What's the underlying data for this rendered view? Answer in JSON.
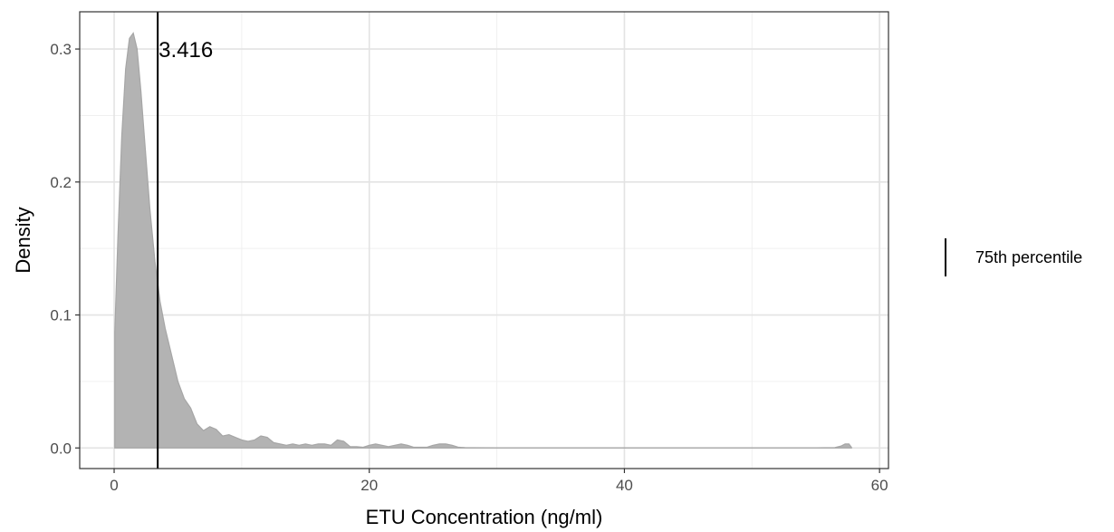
{
  "chart_data": {
    "type": "area",
    "xlabel": "ETU Concentration (ng/ml)",
    "ylabel": "Density",
    "xlim": [
      -2.7,
      60.7
    ],
    "ylim": [
      -0.0155,
      0.328
    ],
    "x_ticks": [
      0,
      20,
      40,
      60
    ],
    "y_ticks": [
      0.0,
      0.1,
      0.2,
      0.3
    ],
    "x_tick_labels": [
      "0",
      "20",
      "40",
      "60"
    ],
    "y_tick_labels": [
      "0.0",
      "0.1",
      "0.2",
      "0.3"
    ],
    "x_minor_ticks": [
      10,
      30,
      50
    ],
    "y_minor_ticks": [
      0.05,
      0.15,
      0.25
    ],
    "grid": true,
    "series": [
      {
        "fill_color": "#b3b3b3",
        "line_color": "#a6a6a6",
        "x": [
          0.05,
          0.3,
          0.6,
          0.9,
          1.2,
          1.5,
          1.8,
          2.1,
          2.4,
          2.8,
          3.2,
          3.6,
          4.0,
          4.5,
          5.0,
          5.5,
          6.0,
          6.5,
          7.0,
          7.5,
          8.0,
          8.5,
          9.0,
          9.5,
          10.0,
          10.5,
          11.0,
          11.5,
          12.0,
          12.5,
          13.0,
          13.5,
          14.0,
          14.5,
          15.0,
          15.5,
          16.0,
          16.5,
          17.0,
          17.5,
          18.0,
          18.5,
          19.0,
          19.5,
          20.0,
          20.5,
          21.0,
          21.5,
          22.0,
          22.5,
          23.0,
          23.5,
          24.0,
          24.5,
          25.0,
          25.5,
          26.0,
          26.5,
          27.0,
          27.5,
          28.0,
          30.0,
          35.0,
          40.0,
          45.0,
          50.0,
          55.0,
          56.5,
          57.0,
          57.3,
          57.6,
          57.8
        ],
        "y": [
          0.087,
          0.16,
          0.235,
          0.285,
          0.308,
          0.312,
          0.3,
          0.268,
          0.23,
          0.18,
          0.14,
          0.11,
          0.09,
          0.07,
          0.05,
          0.037,
          0.03,
          0.018,
          0.013,
          0.016,
          0.014,
          0.009,
          0.01,
          0.008,
          0.006,
          0.005,
          0.006,
          0.009,
          0.008,
          0.004,
          0.003,
          0.002,
          0.003,
          0.002,
          0.003,
          0.002,
          0.003,
          0.003,
          0.002,
          0.006,
          0.005,
          0.001,
          0.001,
          0.0005,
          0.002,
          0.003,
          0.002,
          0.001,
          0.002,
          0.003,
          0.002,
          0.0005,
          0.0005,
          0.0005,
          0.002,
          0.003,
          0.003,
          0.002,
          0.0005,
          0.0003,
          0.0002,
          0.0001,
          0.0001,
          0.0001,
          0.0001,
          0.0001,
          0.0001,
          0.0003,
          0.0015,
          0.003,
          0.003,
          0.0005
        ]
      }
    ],
    "vline": {
      "x": 3.416,
      "label": "3.416",
      "color": "#000000"
    },
    "legend": {
      "position": "right",
      "entries": [
        {
          "label": "75th percentile",
          "symbol": "vertical-line"
        }
      ]
    }
  }
}
